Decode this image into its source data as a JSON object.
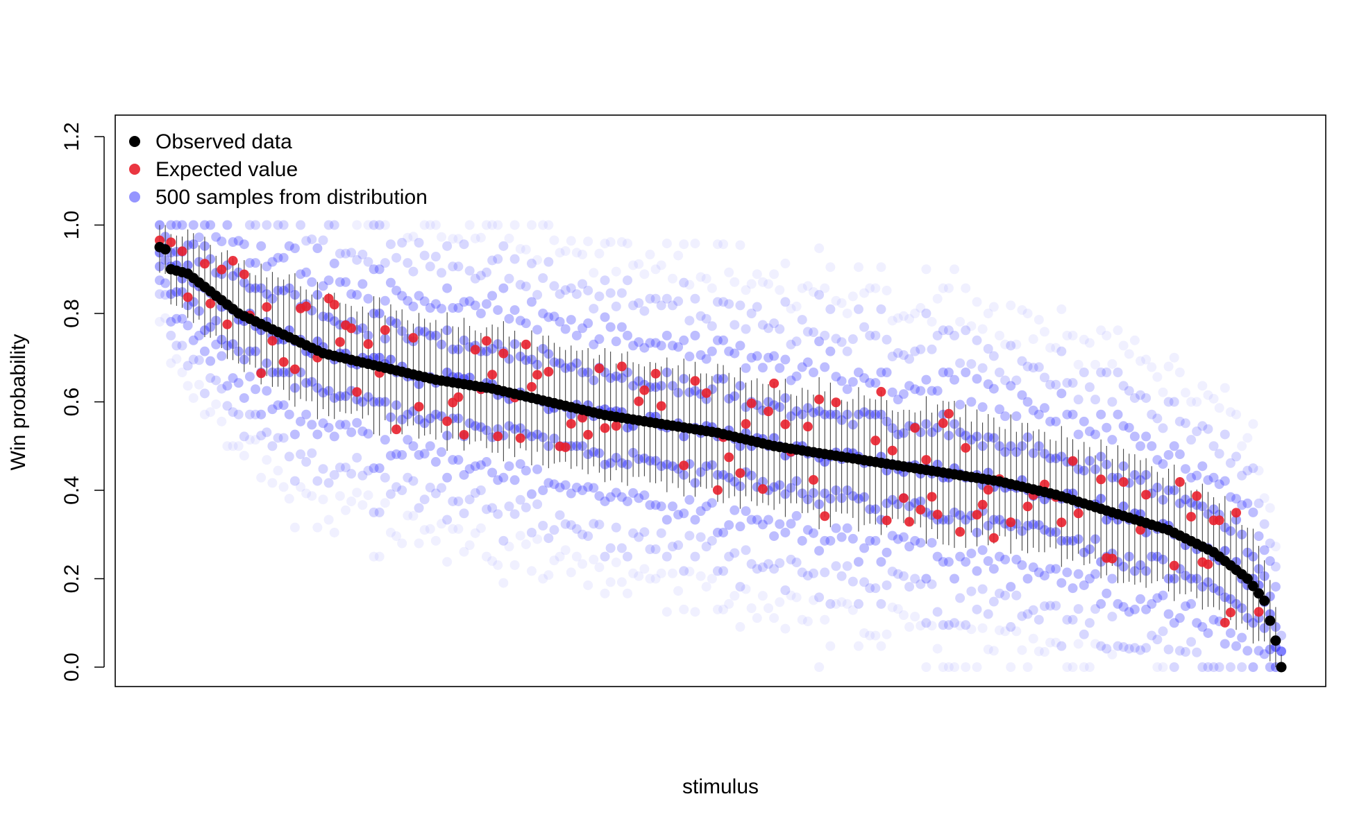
{
  "chart_data": {
    "type": "scatter",
    "title": "",
    "xlabel": "stimulus",
    "ylabel": "Win probability",
    "x_range": [
      1,
      200
    ],
    "ylim": [
      0,
      1.2
    ],
    "y_ticks": [
      "0.0",
      "0.2",
      "0.4",
      "0.6",
      "0.8",
      "1.0",
      "1.2"
    ],
    "x_ticks": [],
    "grid": false,
    "legend_position": "top-left",
    "legend": [
      {
        "label": "Observed data",
        "color": "#000000"
      },
      {
        "label": "Expected value",
        "color": "#e8202c"
      },
      {
        "label": "500 samples from distribution",
        "color": "#2b2bff"
      }
    ],
    "series": [
      {
        "name": "Observed data",
        "color": "#000000",
        "description_points": [
          {
            "x": 1,
            "y": 0.95
          },
          {
            "x": 2,
            "y": 0.945
          },
          {
            "x": 3,
            "y": 0.9
          },
          {
            "x": 6,
            "y": 0.89
          },
          {
            "x": 10,
            "y": 0.85
          },
          {
            "x": 15,
            "y": 0.8
          },
          {
            "x": 20,
            "y": 0.77
          },
          {
            "x": 25,
            "y": 0.74
          },
          {
            "x": 30,
            "y": 0.71
          },
          {
            "x": 40,
            "y": 0.68
          },
          {
            "x": 50,
            "y": 0.65
          },
          {
            "x": 60,
            "y": 0.63
          },
          {
            "x": 70,
            "y": 0.6
          },
          {
            "x": 80,
            "y": 0.57
          },
          {
            "x": 90,
            "y": 0.55
          },
          {
            "x": 100,
            "y": 0.53
          },
          {
            "x": 110,
            "y": 0.5
          },
          {
            "x": 120,
            "y": 0.48
          },
          {
            "x": 130,
            "y": 0.46
          },
          {
            "x": 140,
            "y": 0.44
          },
          {
            "x": 150,
            "y": 0.42
          },
          {
            "x": 160,
            "y": 0.39
          },
          {
            "x": 170,
            "y": 0.35
          },
          {
            "x": 180,
            "y": 0.31
          },
          {
            "x": 188,
            "y": 0.26
          },
          {
            "x": 194,
            "y": 0.2
          },
          {
            "x": 197,
            "y": 0.15
          },
          {
            "x": 199,
            "y": 0.06
          },
          {
            "x": 200,
            "y": 0.0
          }
        ]
      },
      {
        "name": "Expected value",
        "color": "#e8202c",
        "summary": "red expected-value points scattered around the observed-data curve"
      },
      {
        "name": "500 samples from distribution",
        "color": "#2b2bff",
        "summary": "semi-transparent blue sample points spread across win probability levels for each stimulus"
      }
    ]
  }
}
